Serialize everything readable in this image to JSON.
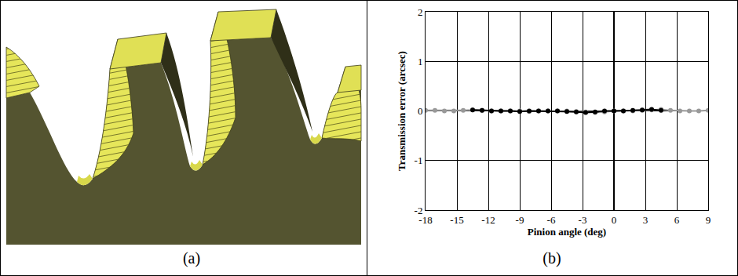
{
  "panel_labels": [
    "(a)",
    "(b)"
  ],
  "chart_data": {
    "type": "line",
    "xlabel": "Pinion angle (deg)",
    "ylabel": "Transmission error (arcsec)",
    "xlim": [
      -18,
      9
    ],
    "xticks": [
      -18,
      -15,
      -12,
      -9,
      -6,
      -3,
      0,
      3,
      6,
      9
    ],
    "ylim": [
      -2,
      2
    ],
    "yticks": [
      -2,
      -1,
      0,
      1,
      2
    ],
    "grid": true,
    "series": [
      {
        "color": "#999999",
        "marker": "circle",
        "line_style": "solid",
        "x": [
          -18,
          -17.1,
          -16.2,
          -15.3,
          -14.4,
          -13.5,
          -12.6,
          -11.7,
          -10.8,
          -9.9,
          -9,
          -8.1,
          -7.2,
          -6.3,
          -5.4,
          -4.5,
          -3.6,
          -2.7,
          -1.8,
          -0.9,
          0,
          0.9,
          1.8,
          2.7,
          3.6,
          4.5,
          5.4,
          6.3,
          7.2,
          8.1,
          9
        ],
        "values": [
          0.01,
          0.01,
          0,
          0,
          0.01,
          0.02,
          0.01,
          0,
          0,
          0,
          0,
          -0.01,
          0,
          0,
          0,
          0,
          -0.01,
          -0.02,
          -0.03,
          -0.02,
          0,
          0,
          0,
          0.01,
          0.02,
          0.03,
          0.01,
          0,
          0,
          0,
          0.01
        ]
      },
      {
        "color": "#000000",
        "marker": "circle",
        "line_style": "solid",
        "x": [
          -13.5,
          -12.6,
          -11.7,
          -10.8,
          -9.9,
          -9,
          -8.1,
          -7.2,
          -6.3,
          -5.4,
          -4.5,
          -3.6,
          -2.7,
          -1.8,
          -0.9,
          0,
          0.9,
          1.8,
          2.7,
          3.6,
          4.5
        ],
        "values": [
          0.02,
          0.01,
          0,
          0,
          0,
          -0.01,
          0,
          0,
          0,
          0,
          -0.01,
          -0.02,
          -0.03,
          -0.02,
          0,
          0,
          0,
          0.01,
          0.02,
          0.03,
          0.01
        ]
      }
    ]
  }
}
